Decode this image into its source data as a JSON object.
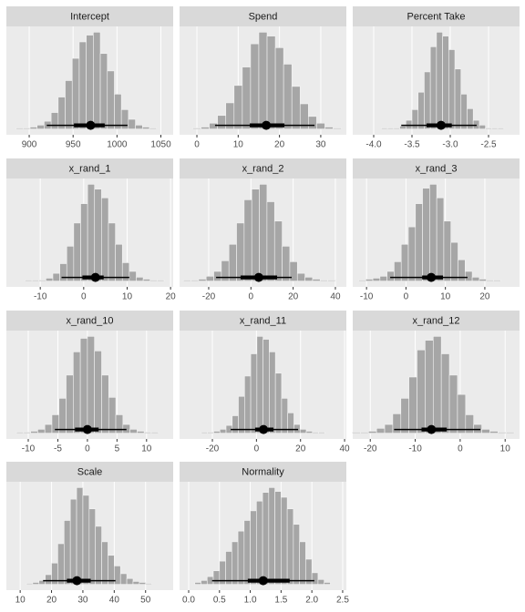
{
  "chart_data": [
    {
      "type": "histogram",
      "title": "Intercept",
      "color": "#a6a6a6",
      "grid": true,
      "bins": [
        885,
        893,
        901,
        909,
        917,
        925,
        933,
        941,
        949,
        957,
        965,
        973,
        981,
        989,
        997,
        1005,
        1013,
        1021,
        1029,
        1037,
        1045
      ],
      "counts": [
        1,
        1,
        2,
        4,
        8,
        17,
        33,
        50,
        73,
        90,
        97,
        100,
        78,
        60,
        36,
        20,
        10,
        4,
        2,
        1
      ],
      "xlim": [
        874,
        1064
      ],
      "xticks": [
        900,
        950,
        1000,
        1050
      ],
      "ylim": [
        -6,
        106
      ],
      "interval": {
        "median": 970,
        "thick": [
          951,
          986
        ],
        "thin": [
          920,
          1012
        ]
      }
    },
    {
      "type": "histogram",
      "title": "Spend",
      "color": "#a6a6a6",
      "grid": true,
      "bins": [
        -1,
        1,
        3,
        5,
        7,
        9,
        11,
        13,
        15,
        17,
        19,
        21,
        23,
        25,
        27,
        29,
        31,
        33,
        35
      ],
      "counts": [
        1,
        2,
        6,
        14,
        27,
        45,
        64,
        88,
        100,
        96,
        84,
        67,
        44,
        26,
        13,
        6,
        2,
        1
      ],
      "xlim": [
        -4.2,
        36.2
      ],
      "xticks": [
        0,
        10,
        20,
        30
      ],
      "ylim": [
        -6,
        106
      ],
      "interval": {
        "median": 16.8,
        "thick": [
          12.8,
          21.2
        ],
        "thin": [
          4.4,
          28.5
        ]
      }
    },
    {
      "type": "histogram",
      "title": "Percent Take",
      "color": "#a6a6a6",
      "grid": true,
      "bins": [
        -3.9,
        -3.82,
        -3.74,
        -3.66,
        -3.58,
        -3.5,
        -3.42,
        -3.34,
        -3.26,
        -3.18,
        -3.1,
        -3.02,
        -2.94,
        -2.86,
        -2.78,
        -2.7,
        -2.62,
        -2.54,
        -2.46,
        -2.38,
        -2.3
      ],
      "counts": [
        1,
        1,
        1,
        3,
        9,
        20,
        38,
        59,
        85,
        100,
        96,
        82,
        62,
        36,
        21,
        9,
        4,
        1,
        1,
        1
      ],
      "xlim": [
        -4.274,
        -2.095
      ],
      "xticks": [
        {
          "value": -4,
          "label": "-4.0"
        },
        -3.5,
        {
          "value": -3,
          "label": "-3.0"
        },
        -2.5
      ],
      "ylim": [
        -6,
        106
      ],
      "interval": {
        "median": -3.12,
        "thick": [
          -3.31,
          -2.98
        ],
        "thin": [
          -3.64,
          -2.655
        ]
      }
    },
    {
      "type": "histogram",
      "title": "x_rand_1",
      "color": "#a6a6a6",
      "grid": true,
      "bins": [
        -13.5,
        -11.9,
        -10.3,
        -8.7,
        -7.1,
        -5.5,
        -3.9,
        -2.3,
        -0.7,
        0.9,
        2.5,
        4.1,
        5.7,
        7.3,
        8.9,
        10.5,
        12.1,
        13.7,
        15.3,
        16.9,
        18.5
      ],
      "counts": [
        1,
        1,
        1,
        3,
        8,
        18,
        36,
        60,
        80,
        100,
        95,
        86,
        60,
        38,
        19,
        10,
        4,
        2,
        1,
        1
      ],
      "xlim": [
        -17.8,
        20.6
      ],
      "xticks": [
        -10,
        0,
        10,
        20
      ],
      "ylim": [
        -6,
        106
      ],
      "interval": {
        "median": 2.7,
        "thick": [
          -0.3,
          4.6
        ],
        "thin": [
          -5.1,
          10.5
        ]
      }
    },
    {
      "type": "histogram",
      "title": "x_rand_2",
      "color": "#a6a6a6",
      "grid": true,
      "bins": [
        -32,
        -28.4,
        -24.8,
        -21.2,
        -17.6,
        -14,
        -10.4,
        -6.8,
        -3.2,
        0.4,
        4,
        7.6,
        11.2,
        14.8,
        18.4,
        22,
        25.6,
        29.2,
        32.8,
        36.4,
        40
      ],
      "counts": [
        1,
        1,
        2,
        5,
        10,
        21,
        38,
        60,
        84,
        95,
        100,
        82,
        62,
        36,
        20,
        8,
        4,
        2,
        1,
        1
      ],
      "xlim": [
        -33.8,
        45.2
      ],
      "xticks": [
        -20,
        0,
        20,
        40
      ],
      "ylim": [
        -6,
        106
      ],
      "interval": {
        "median": 3.7,
        "thick": [
          -4.9,
          12.4
        ],
        "thin": [
          -16.5,
          19.3
        ]
      }
    },
    {
      "type": "histogram",
      "title": "x_rand_3",
      "color": "#a6a6a6",
      "grid": true,
      "bins": [
        -12,
        -10.2,
        -8.4,
        -6.6,
        -4.8,
        -3,
        -1.2,
        0.6,
        2.4,
        4.2,
        6,
        7.8,
        9.6,
        11.4,
        13.2,
        15,
        16.8,
        18.6,
        20.4,
        22.2,
        24
      ],
      "counts": [
        1,
        2,
        3,
        5,
        10,
        20,
        38,
        56,
        80,
        96,
        100,
        86,
        62,
        40,
        22,
        10,
        4,
        2,
        1,
        1
      ],
      "xlim": [
        -13.5,
        28.8
      ],
      "xticks": [
        -10,
        0,
        10,
        20
      ],
      "ylim": [
        -6,
        106
      ],
      "interval": {
        "median": 6.4,
        "thick": [
          4.1,
          9.4
        ],
        "thin": [
          -4,
          15.6
        ]
      }
    },
    {
      "type": "histogram",
      "title": "x_rand_10",
      "color": "#a6a6a6",
      "grid": true,
      "bins": [
        -12,
        -10.8,
        -9.6,
        -8.4,
        -7.2,
        -6,
        -4.8,
        -3.6,
        -2.4,
        -1.2,
        0,
        1.2,
        2.4,
        3.6,
        4.8,
        6,
        7.2,
        8.4,
        9.6,
        10.8,
        12
      ],
      "counts": [
        1,
        1,
        2,
        4,
        9,
        19,
        36,
        60,
        84,
        98,
        100,
        85,
        60,
        37,
        19,
        9,
        4,
        2,
        1,
        1
      ],
      "xlim": [
        -13.7,
        14.5
      ],
      "xticks": [
        -10,
        -5,
        0,
        5,
        10
      ],
      "ylim": [
        -6,
        106
      ],
      "interval": {
        "median": 0,
        "thick": [
          -2.1,
          1.9
        ],
        "thin": [
          -5.5,
          6.6
        ]
      }
    },
    {
      "type": "histogram",
      "title": "x_rand_11",
      "color": "#a6a6a6",
      "grid": true,
      "bins": [
        -25,
        -22.2,
        -19.4,
        -16.6,
        -13.8,
        -11,
        -8.2,
        -5.4,
        -2.6,
        0.2,
        3,
        5.8,
        8.6,
        11.4,
        14.2,
        17,
        19.8,
        22.6,
        25.4,
        28.2,
        31
      ],
      "counts": [
        1,
        1,
        2,
        4,
        8,
        18,
        38,
        59,
        82,
        100,
        97,
        84,
        62,
        36,
        21,
        9,
        4,
        2,
        1,
        1
      ],
      "xlim": [
        -34.9,
        40.8
      ],
      "xticks": [
        -20,
        0,
        20,
        40
      ],
      "ylim": [
        -6,
        106
      ],
      "interval": {
        "median": 3.2,
        "thick": [
          -0.6,
          7.7
        ],
        "thin": [
          -11.7,
          18.9
        ]
      }
    },
    {
      "type": "histogram",
      "title": "x_rand_12",
      "color": "#a6a6a6",
      "grid": true,
      "bins": [
        -24,
        -22.2,
        -20.4,
        -18.6,
        -16.8,
        -15,
        -13.2,
        -11.4,
        -9.6,
        -7.8,
        -6,
        -4.2,
        -2.4,
        -0.6,
        1.2,
        3,
        4.8,
        6.6,
        8.4,
        10.2,
        12
      ],
      "counts": [
        1,
        1,
        2,
        5,
        9,
        20,
        36,
        58,
        86,
        96,
        100,
        82,
        60,
        40,
        19,
        9,
        4,
        2,
        1,
        1
      ],
      "xlim": [
        -23.9,
        13.2
      ],
      "xticks": [
        -20,
        -10,
        0,
        10
      ],
      "ylim": [
        -6,
        106
      ],
      "interval": {
        "median": -6.4,
        "thick": [
          -8.6,
          -3
        ],
        "thin": [
          -14.7,
          4.5
        ]
      }
    },
    {
      "type": "histogram",
      "title": "Scale",
      "color": "#a6a6a6",
      "grid": true,
      "bins": [
        12,
        14,
        16,
        18,
        20,
        22,
        24,
        26,
        28,
        30,
        32,
        34,
        36,
        38,
        40,
        42,
        44,
        46,
        48,
        50,
        52
      ],
      "counts": [
        1,
        2,
        4,
        10,
        22,
        42,
        66,
        88,
        100,
        92,
        78,
        60,
        44,
        30,
        19,
        11,
        6,
        3,
        2,
        1
      ],
      "xlim": [
        5.6,
        58.8
      ],
      "xticks": [
        10,
        20,
        30,
        40,
        50
      ],
      "ylim": [
        -6,
        106
      ],
      "interval": {
        "median": 28.1,
        "thick": [
          24.9,
          32.5
        ],
        "thin": [
          17.3,
          40.4
        ]
      }
    },
    {
      "type": "histogram",
      "title": "Normality",
      "color": "#a6a6a6",
      "grid": true,
      "bins": [
        0.1,
        0.2,
        0.3,
        0.4,
        0.5,
        0.6,
        0.7,
        0.8,
        0.9,
        1,
        1.1,
        1.2,
        1.3,
        1.4,
        1.5,
        1.6,
        1.7,
        1.8,
        1.9,
        2,
        2.1,
        2.2,
        2.3
      ],
      "counts": [
        2,
        4,
        8,
        14,
        24,
        34,
        44,
        55,
        66,
        76,
        86,
        95,
        100,
        96,
        90,
        78,
        62,
        44,
        26,
        12,
        5,
        2
      ],
      "xlim": [
        -0.148,
        2.56
      ],
      "xticks": [
        {
          "value": 0,
          "label": "0.0"
        },
        0.5,
        {
          "value": 1,
          "label": "1.0"
        },
        1.5,
        {
          "value": 2,
          "label": "2.0"
        },
        2.5
      ],
      "ylim": [
        -6,
        106
      ],
      "interval": {
        "median": 1.21,
        "thick": [
          0.96,
          1.64
        ],
        "thin": [
          0.38,
          2.04
        ]
      }
    }
  ]
}
